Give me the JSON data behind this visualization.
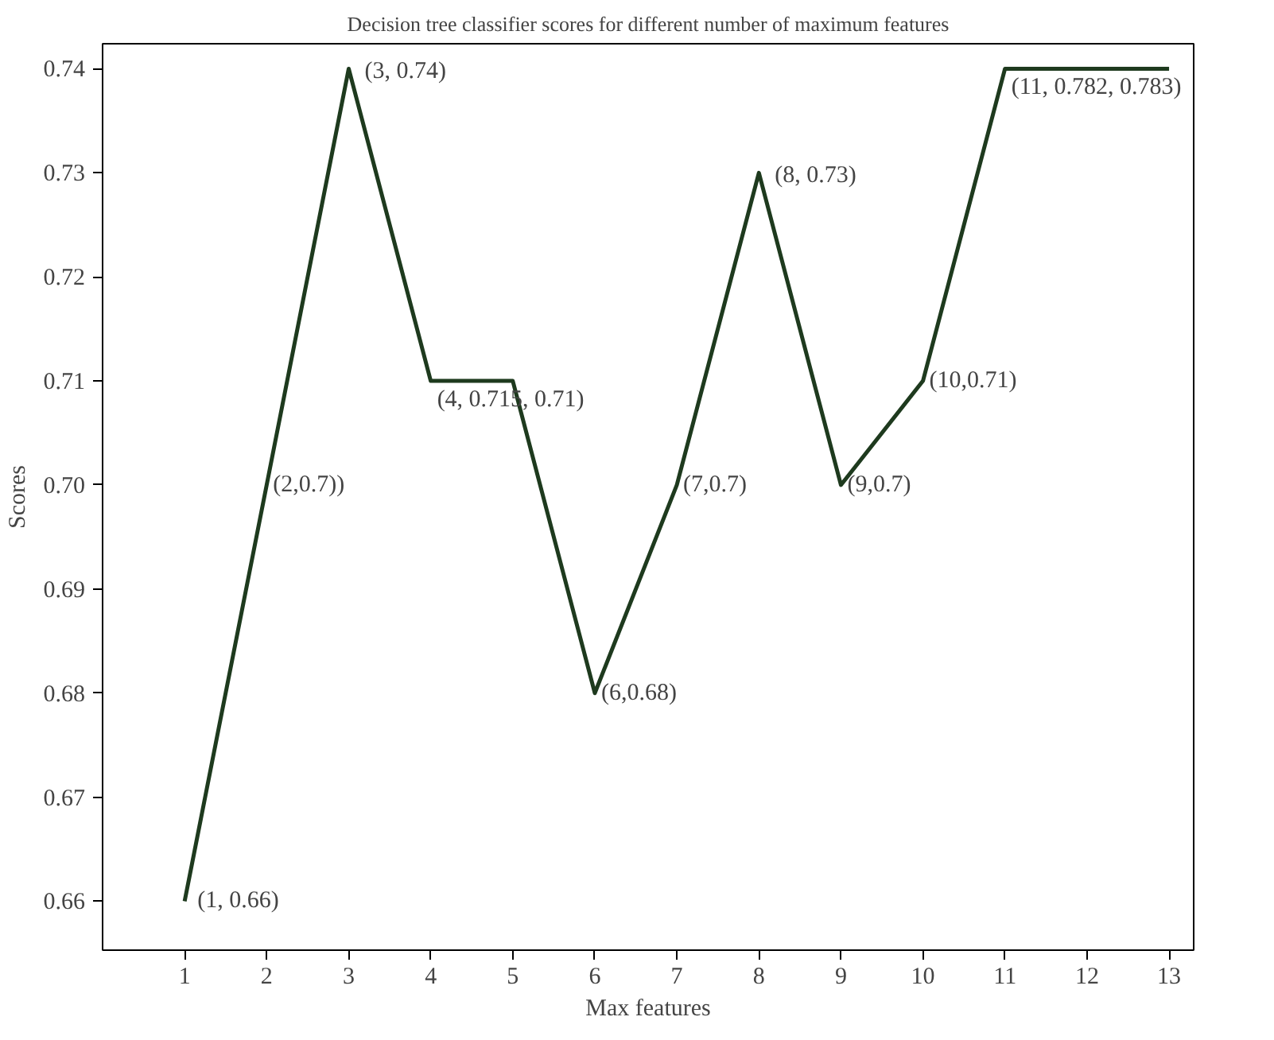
{
  "chart_data": {
    "type": "line",
    "title": "Decision tree classifier scores for different number of maximum features",
    "xlabel": "Max features",
    "ylabel": "Scores",
    "x": [
      1,
      2,
      3,
      4,
      5,
      6,
      7,
      8,
      9,
      10,
      11,
      12,
      13
    ],
    "series": [
      {
        "color": "#1e3a1e",
        "values": [
          0.66,
          0.7,
          0.74,
          0.71,
          0.71,
          0.68,
          0.7,
          0.73,
          0.7,
          0.71,
          0.74,
          0.74,
          0.74
        ]
      }
    ],
    "xlim": [
      0,
      13.3
    ],
    "ylim": [
      0.6553,
      0.7424
    ],
    "xticks": [
      1,
      2,
      3,
      4,
      5,
      6,
      7,
      8,
      9,
      10,
      11,
      12,
      13
    ],
    "yticks": [
      0.66,
      0.67,
      0.68,
      0.69,
      {
        "value": 0.7,
        "label": "0.70"
      },
      0.71,
      0.72,
      0.73,
      0.74
    ],
    "line_style": "solid",
    "annotations": [
      {
        "text": "(1, 0.66)",
        "x": 1,
        "y": 0.66
      },
      {
        "text": "(2,0.7))",
        "x": 2,
        "y": 0.7
      },
      {
        "text": "(3, 0.74)",
        "x": 3,
        "y": 0.74
      },
      {
        "text": "(4, 0.715, 0.71)",
        "x": 4,
        "y": 0.71
      },
      {
        "text": "(6,0.68)",
        "x": 6,
        "y": 0.68
      },
      {
        "text": "(7,0.7)",
        "x": 7,
        "y": 0.7
      },
      {
        "text": "(8, 0.73)",
        "x": 8,
        "y": 0.73
      },
      {
        "text": "(9,0.7)",
        "x": 9,
        "y": 0.7
      },
      {
        "text": "(10,0.71)",
        "x": 10,
        "y": 0.71
      },
      {
        "text": "(11, 0.782, 0.783)",
        "x": 11,
        "y": 0.74
      }
    ]
  }
}
